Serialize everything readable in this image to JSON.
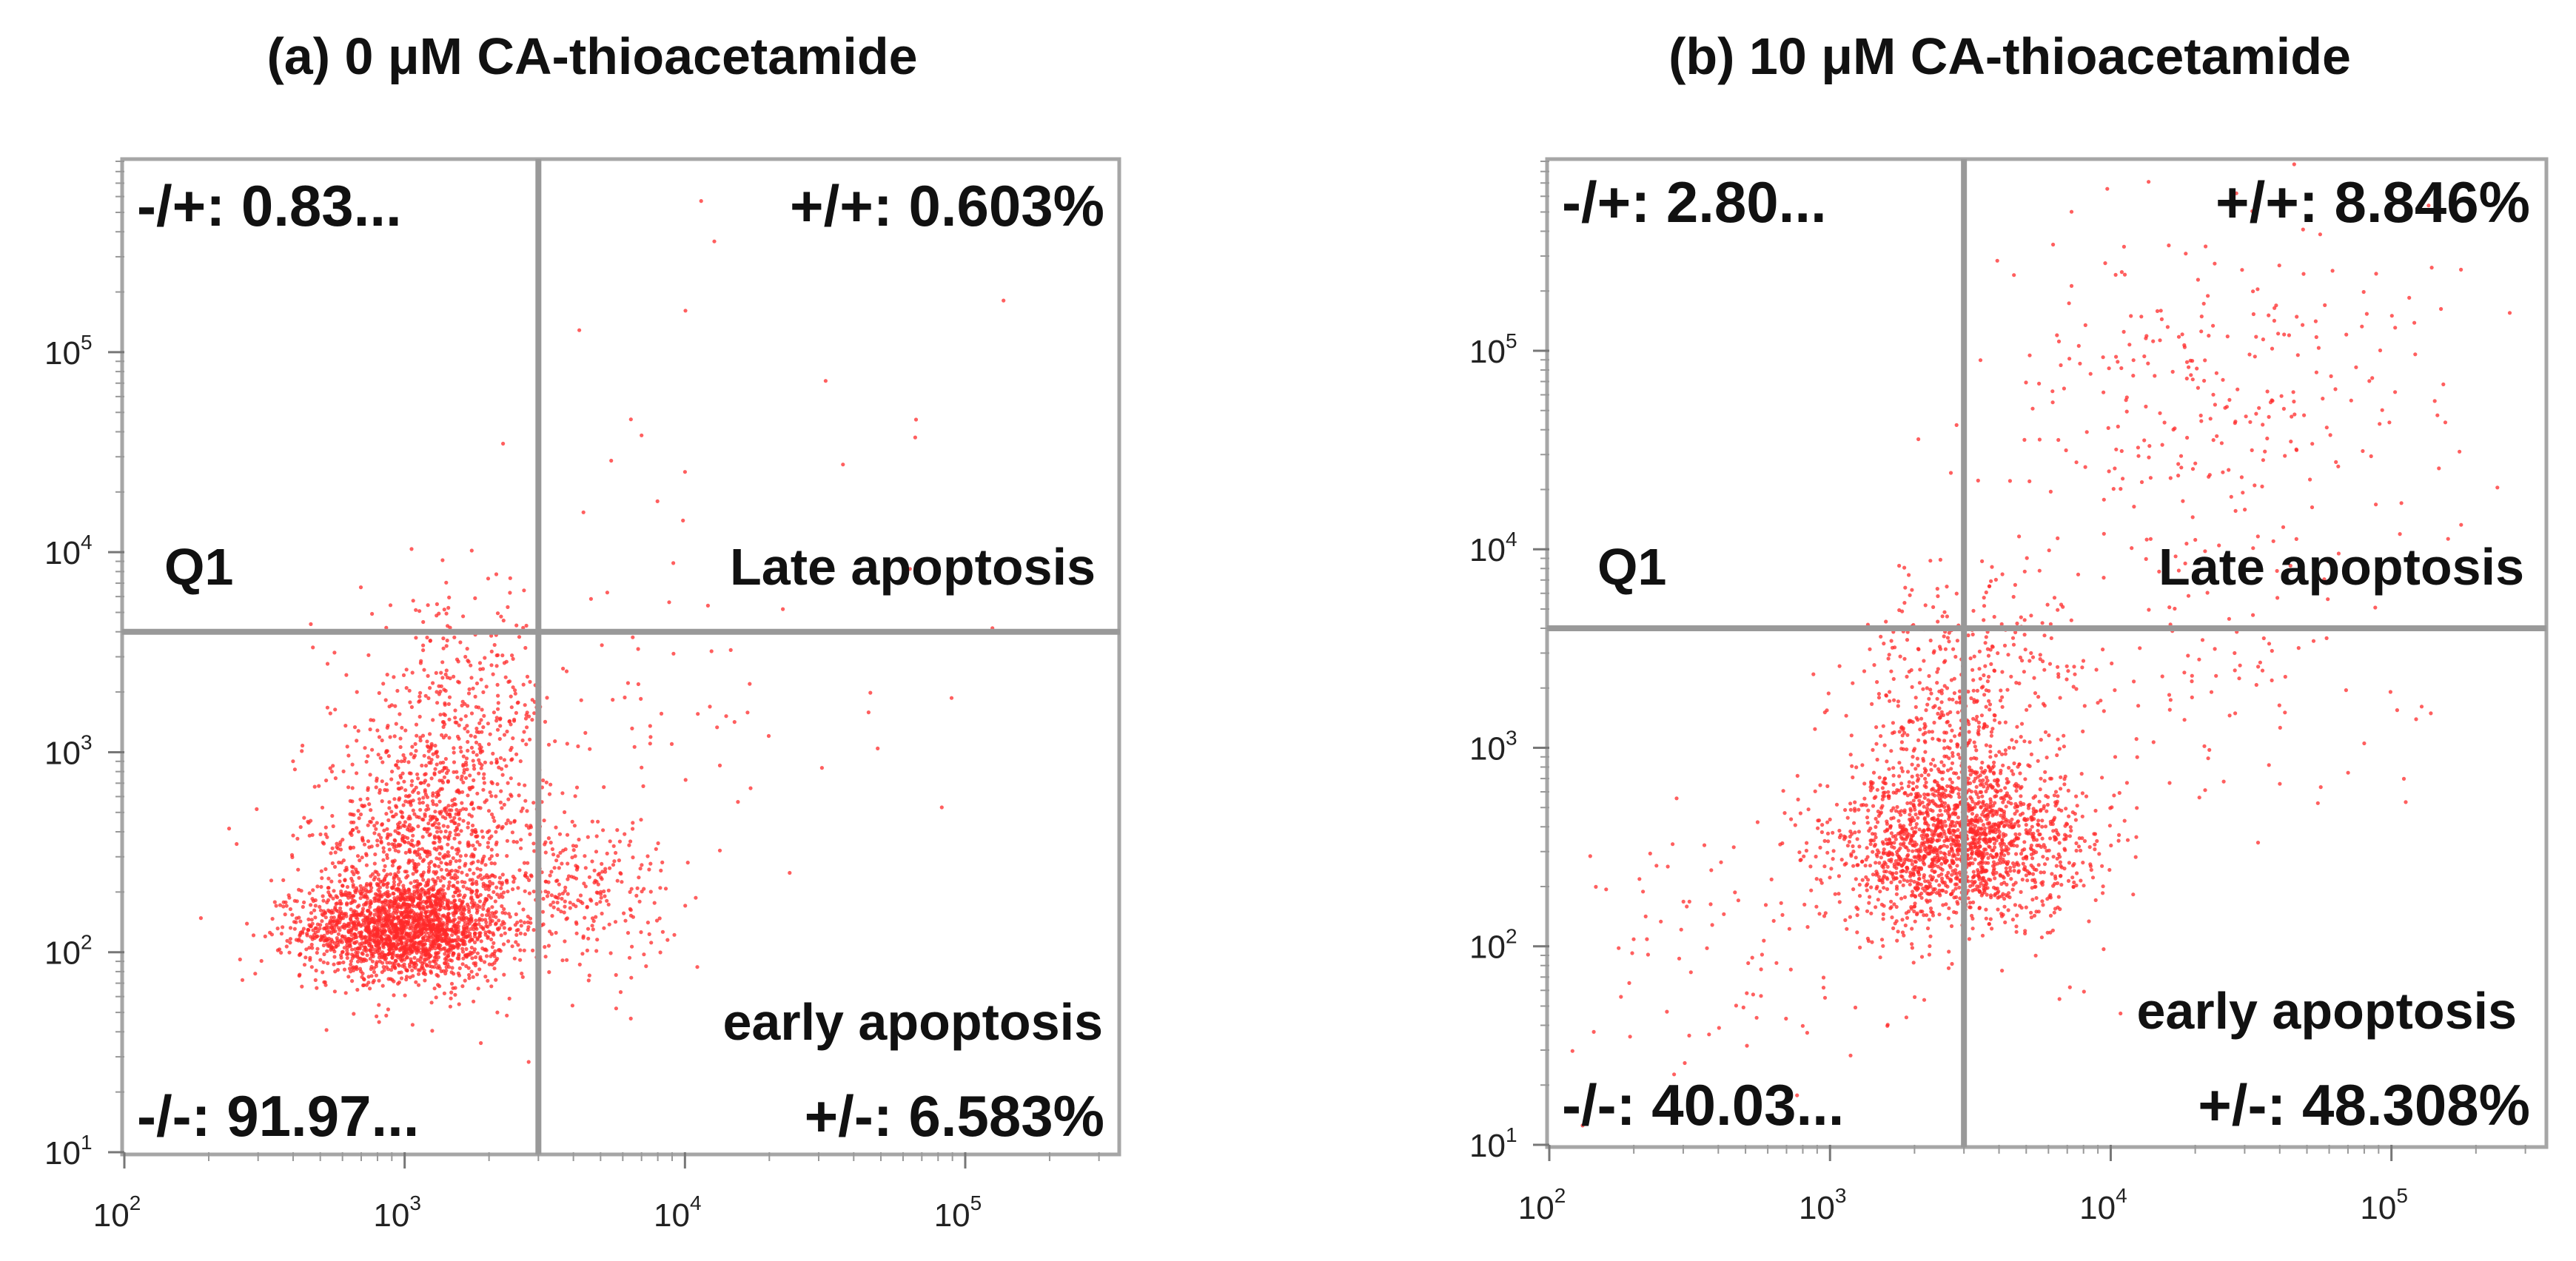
{
  "colors": {
    "dot": "#ff2a2a",
    "frame": "#a6a6a6",
    "gate": "#999999",
    "text": "#111111"
  },
  "chart_data": [
    {
      "type": "scatter",
      "title": "(a) 0 μM CA-thioacetamide",
      "xscale": "log",
      "yscale": "log",
      "xlim": [
        100,
        350000
      ],
      "ylim": [
        10,
        900000
      ],
      "xticks": [
        100,
        1000,
        10000,
        100000
      ],
      "yticks": [
        10,
        100,
        1000,
        10000,
        100000
      ],
      "xtick_base": "10",
      "xtick_exponents": [
        "2",
        "3",
        "4",
        "5"
      ],
      "ytick_base": "10",
      "ytick_exponents": [
        "1",
        "2",
        "3",
        "4",
        "5"
      ],
      "gate": {
        "x": 3000,
        "y": 4000
      },
      "quadrants": {
        "upper_left": {
          "label": "-/+: 0.83...",
          "region": "Q1"
        },
        "upper_right": {
          "label": "+/+: 0.603%",
          "region": "Late apoptosis"
        },
        "lower_left": {
          "label": "-/-: 91.97..."
        },
        "lower_right": {
          "label": "+/-: 6.583%",
          "region": "early apoptosis"
        }
      },
      "clusters": [
        {
          "cx": 1000,
          "cy": 130,
          "sx": 0.18,
          "sy": 0.12,
          "n": 1800
        },
        {
          "cx": 1200,
          "cy": 300,
          "sx": 0.22,
          "sy": 0.3,
          "n": 1100
        },
        {
          "cx": 1500,
          "cy": 1500,
          "sx": 0.17,
          "sy": 0.28,
          "n": 350
        },
        {
          "cx": 4500,
          "cy": 200,
          "sx": 0.15,
          "sy": 0.18,
          "n": 220
        },
        {
          "cx": 8000,
          "cy": 1500,
          "sx": 0.4,
          "sy": 0.4,
          "n": 70
        },
        {
          "cx": 12000,
          "cy": 20000,
          "sx": 0.5,
          "sy": 0.6,
          "n": 25
        }
      ]
    },
    {
      "type": "scatter",
      "title": "(b) 10 μM CA-thioacetamide",
      "xscale": "log",
      "yscale": "log",
      "xlim": [
        100,
        350000
      ],
      "ylim": [
        10,
        900000
      ],
      "xticks": [
        100,
        1000,
        10000,
        100000
      ],
      "yticks": [
        10,
        100,
        1000,
        10000,
        100000
      ],
      "xtick_base": "10",
      "xtick_exponents": [
        "2",
        "3",
        "4",
        "5"
      ],
      "ytick_base": "10",
      "ytick_exponents": [
        "1",
        "2",
        "3",
        "4",
        "5"
      ],
      "gate": {
        "x": 3000,
        "y": 4000
      },
      "quadrants": {
        "upper_left": {
          "label": "-/+: 2.80...",
          "region": "Q1"
        },
        "upper_right": {
          "label": "+/+: 8.846%",
          "region": "Late apoptosis"
        },
        "lower_left": {
          "label": "-/-: 40.03..."
        },
        "lower_right": {
          "label": "+/-: 48.308%",
          "region": "early apoptosis"
        }
      },
      "clusters": [
        {
          "cx": 2800,
          "cy": 320,
          "sx": 0.22,
          "sy": 0.2,
          "n": 1700
        },
        {
          "cx": 3000,
          "cy": 1500,
          "sx": 0.2,
          "sy": 0.35,
          "n": 550
        },
        {
          "cx": 25000,
          "cy": 60000,
          "sx": 0.4,
          "sy": 0.45,
          "n": 280
        },
        {
          "cx": 20000,
          "cy": 2500,
          "sx": 0.5,
          "sy": 0.45,
          "n": 120
        },
        {
          "cx": 700,
          "cy": 90,
          "sx": 0.45,
          "sy": 0.35,
          "n": 120
        }
      ]
    }
  ]
}
